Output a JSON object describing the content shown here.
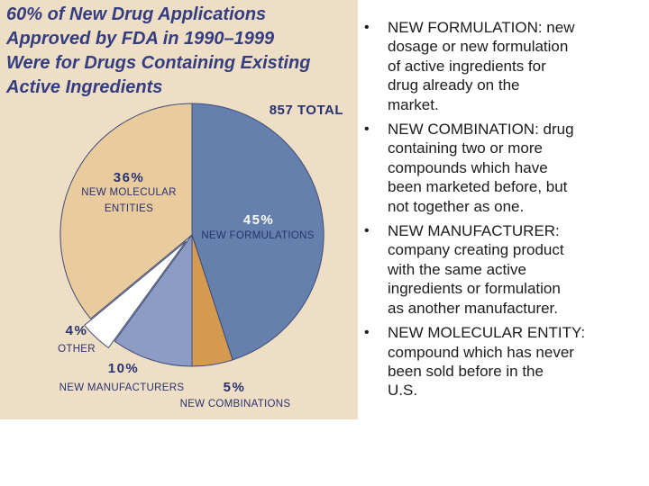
{
  "panel": {
    "background": "#eedec6",
    "title": "60% of New Drug Applications\nApproved by FDA in 1990–1999\nWere for Drugs Containing Existing\nActive Ingredients",
    "title_color": "#333d80"
  },
  "chart_data": {
    "type": "pie",
    "title": "60% of New Drug Applications Approved by FDA in 1990–1999 Were for Drugs Containing Existing Active Ingredients",
    "total_annotation": "857 TOTAL",
    "total": 857,
    "start_angle_deg": 0,
    "direction": "clockwise",
    "stroke_color": "#3f4c77",
    "label_color": "#28326e",
    "slices": [
      {
        "label": "NEW FORMULATIONS",
        "pct_label": "45%",
        "value": 45,
        "color": "#6580ac",
        "pct_label_color": "#ffffff",
        "exploded": false
      },
      {
        "label": "NEW COMBINATIONS",
        "pct_label": "5%",
        "value": 5,
        "color": "#d39a50",
        "exploded": false
      },
      {
        "label": "NEW MANUFACTURERS",
        "pct_label": "10%",
        "value": 10,
        "color": "#8d9cc4",
        "exploded": false
      },
      {
        "label": "OTHER",
        "pct_label": "4%",
        "value": 4,
        "color": "#ffffff",
        "exploded": true
      },
      {
        "label": "NEW MOLECULAR ENTITIES",
        "pct_label": "36%",
        "value": 36,
        "color": "#e9cb9e",
        "exploded": false
      }
    ]
  },
  "bullets": [
    {
      "marker": "•",
      "text": "NEW FORMULATION: new\ndosage or new formulation\nof active ingredients for\ndrug already on the\nmarket."
    },
    {
      "marker": "•",
      "text": "NEW COMBINATION: drug\ncontaining two or more\ncompounds which have\nbeen marketed before, but\nnot together as one."
    },
    {
      "marker": "•",
      "text": "NEW MANUFACTURER:\ncompany creating product\nwith the same active\ningredients or formulation\nas another manufacturer."
    },
    {
      "marker": "•",
      "text": "NEW MOLECULAR ENTITY:\ncompound which has never\nbeen sold before in the\nU.S."
    }
  ]
}
